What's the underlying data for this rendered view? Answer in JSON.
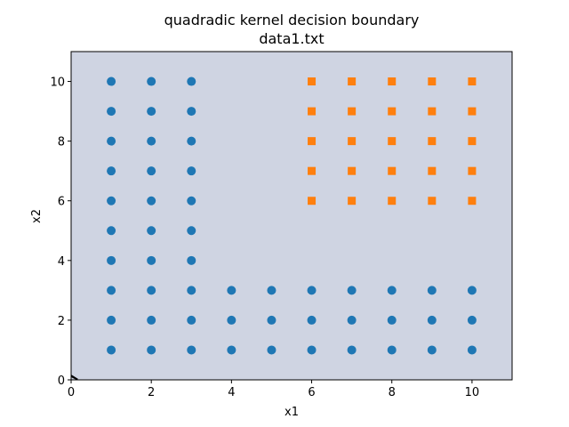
{
  "chart_data": {
    "type": "scatter",
    "title": "quadradic kernel decision boundary",
    "subtitle": "data1.txt",
    "xlabel": "x1",
    "ylabel": "x2",
    "xlim": [
      0,
      11
    ],
    "ylim": [
      0,
      11
    ],
    "xticks": [
      0,
      2,
      4,
      6,
      8,
      10
    ],
    "yticks": [
      0,
      2,
      4,
      6,
      8,
      10
    ],
    "grid": false,
    "background_region_color": "#cfd4e2",
    "series": [
      {
        "marker": "circle",
        "color": "#1f77b4",
        "points": [
          [
            1,
            1
          ],
          [
            1,
            2
          ],
          [
            1,
            3
          ],
          [
            1,
            4
          ],
          [
            1,
            5
          ],
          [
            1,
            6
          ],
          [
            1,
            7
          ],
          [
            1,
            8
          ],
          [
            1,
            9
          ],
          [
            1,
            10
          ],
          [
            2,
            1
          ],
          [
            2,
            2
          ],
          [
            2,
            3
          ],
          [
            2,
            4
          ],
          [
            2,
            5
          ],
          [
            2,
            6
          ],
          [
            2,
            7
          ],
          [
            2,
            8
          ],
          [
            2,
            9
          ],
          [
            2,
            10
          ],
          [
            3,
            1
          ],
          [
            3,
            2
          ],
          [
            3,
            3
          ],
          [
            3,
            4
          ],
          [
            3,
            5
          ],
          [
            3,
            6
          ],
          [
            3,
            7
          ],
          [
            3,
            8
          ],
          [
            3,
            9
          ],
          [
            3,
            10
          ],
          [
            4,
            1
          ],
          [
            4,
            2
          ],
          [
            4,
            3
          ],
          [
            5,
            1
          ],
          [
            5,
            2
          ],
          [
            5,
            3
          ],
          [
            6,
            1
          ],
          [
            6,
            2
          ],
          [
            6,
            3
          ],
          [
            7,
            1
          ],
          [
            7,
            2
          ],
          [
            7,
            3
          ],
          [
            8,
            1
          ],
          [
            8,
            2
          ],
          [
            8,
            3
          ],
          [
            9,
            1
          ],
          [
            9,
            2
          ],
          [
            9,
            3
          ],
          [
            10,
            1
          ],
          [
            10,
            2
          ],
          [
            10,
            3
          ]
        ]
      },
      {
        "marker": "square",
        "color": "#ff7f0e",
        "points": [
          [
            6,
            6
          ],
          [
            6,
            7
          ],
          [
            6,
            8
          ],
          [
            6,
            9
          ],
          [
            6,
            10
          ],
          [
            7,
            6
          ],
          [
            7,
            7
          ],
          [
            7,
            8
          ],
          [
            7,
            9
          ],
          [
            7,
            10
          ],
          [
            8,
            6
          ],
          [
            8,
            7
          ],
          [
            8,
            8
          ],
          [
            8,
            9
          ],
          [
            8,
            10
          ],
          [
            9,
            6
          ],
          [
            9,
            7
          ],
          [
            9,
            8
          ],
          [
            9,
            9
          ],
          [
            9,
            10
          ],
          [
            10,
            6
          ],
          [
            10,
            7
          ],
          [
            10,
            8
          ],
          [
            10,
            9
          ],
          [
            10,
            10
          ]
        ]
      }
    ]
  }
}
